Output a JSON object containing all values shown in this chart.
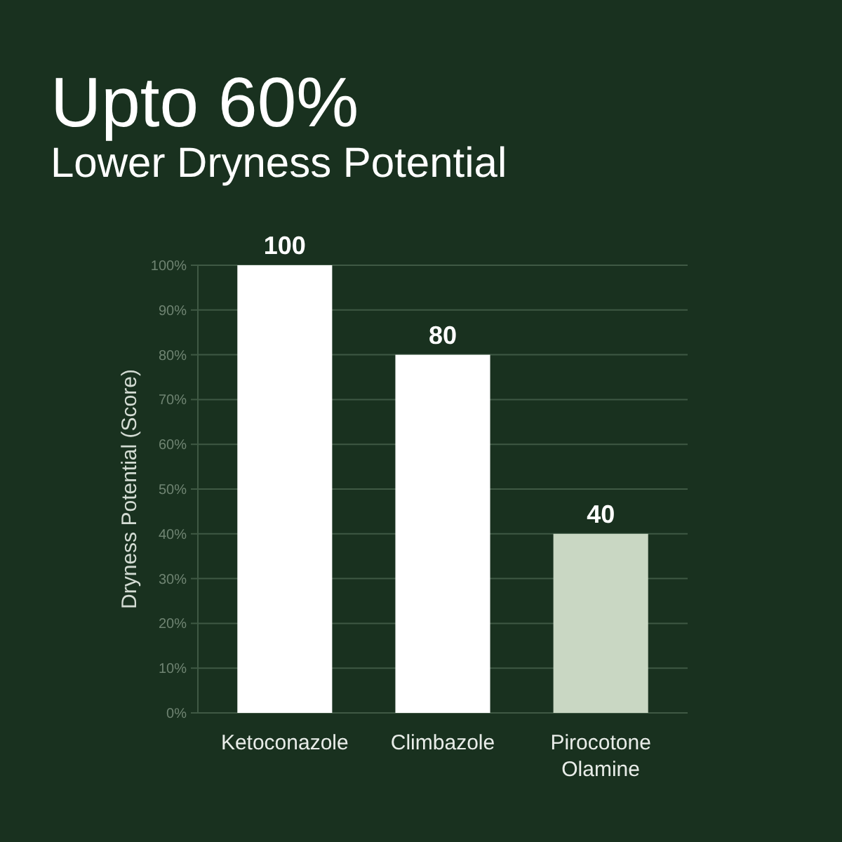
{
  "chart_data": {
    "type": "bar",
    "title": "Upto 60%",
    "subtitle": "Lower Dryness Potential",
    "ylabel": "Dryness Potential (Score)",
    "categories": [
      "Ketoconazole",
      "Climbazole",
      "Pirocotone Olamine"
    ],
    "values": [
      100,
      80,
      40
    ],
    "colors": [
      "#ffffff",
      "#ffffff",
      "#c9d7c3"
    ],
    "ylim": [
      0,
      100
    ],
    "yticks": [
      {
        "value": 0,
        "label": "0%"
      },
      {
        "value": 10,
        "label": "10%"
      },
      {
        "value": 20,
        "label": "20%"
      },
      {
        "value": 30,
        "label": "30%"
      },
      {
        "value": 40,
        "label": "40%"
      },
      {
        "value": 50,
        "label": "50%"
      },
      {
        "value": 60,
        "label": "60%"
      },
      {
        "value": 70,
        "label": "70%"
      },
      {
        "value": 80,
        "label": "80%"
      },
      {
        "value": 90,
        "label": "90%"
      },
      {
        "value": 100,
        "label": "100%"
      }
    ],
    "grid": "y",
    "data_labels": true
  }
}
